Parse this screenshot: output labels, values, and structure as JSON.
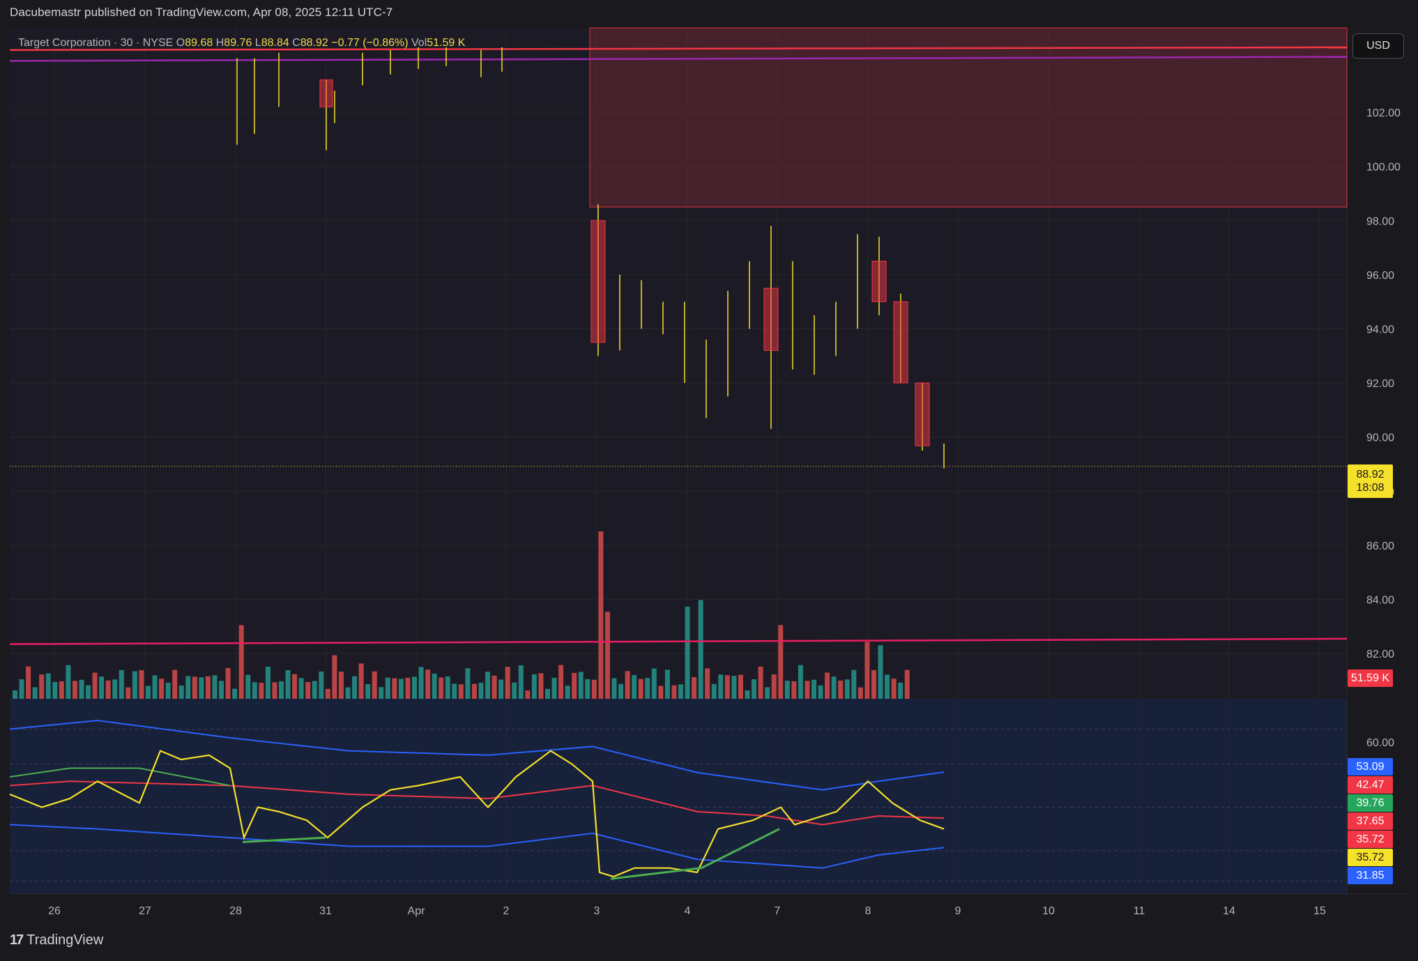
{
  "header": {
    "published": "Dacubemastr published on TradingView.com, Apr 08, 2025 12:11 UTC-7"
  },
  "legend": {
    "symbol": "Target Corporation · 30 · NYSE",
    "open_label": "O",
    "open": "89.68",
    "high_label": "H",
    "high": "89.76",
    "low_label": "L",
    "low": "88.84",
    "close_label": "C",
    "close": "88.92",
    "change": "−0.77 (−0.86%)",
    "vol_label": "Vol",
    "vol": "51.59 K"
  },
  "currency_button": "USD",
  "price_tag": {
    "price": "88.92",
    "countdown": "18:08"
  },
  "volume_tag": "51.59 K",
  "indicator_tags": [
    {
      "value": "53.09",
      "color": "#2962ff"
    },
    {
      "value": "42.47",
      "color": "#f23645"
    },
    {
      "value": "39.76",
      "color": "#26a65b"
    },
    {
      "value": "37.65",
      "color": "#f23645"
    },
    {
      "value": "35.72",
      "color": "#f23645"
    },
    {
      "value": "35.72",
      "color": "#f5e02a"
    },
    {
      "value": "31.85",
      "color": "#2962ff"
    }
  ],
  "footer": {
    "brand": "TradingView",
    "logo_text": "17"
  },
  "colors": {
    "background": "#1a1a1e",
    "candle": "#f5e02a",
    "down_candle": "#f23645",
    "volume_up": "#26a69a",
    "volume_down": "#ef5350",
    "resistance_zone": "#f23645",
    "magenta_line": "#e91e63",
    "purple_line": "#9c27b0",
    "rsi": "#f5e02a",
    "bands": "#2962ff",
    "rsi_ma": "#f23645",
    "divergence": "#4caf50"
  },
  "chart_data": {
    "type": "candlestick",
    "title": "Target Corporation · 30 · NYSE",
    "price_axis": {
      "ylim": [
        81.0,
        104.5
      ],
      "ticks": [
        "102.00",
        "100.00",
        "98.00",
        "96.00",
        "94.00",
        "92.00",
        "90.00",
        "88.00",
        "86.00",
        "84.00",
        "82.00"
      ]
    },
    "x_axis": {
      "ticks": [
        "26",
        "27",
        "28",
        "31",
        "Apr",
        "2",
        "3",
        "4",
        "7",
        "8",
        "9",
        "10",
        "11",
        "14",
        "15"
      ]
    },
    "last_price": 88.92,
    "resistance_zone": {
      "from_date": "3",
      "price_low": 98.5,
      "price_high": 104.5
    },
    "horizontal_lines": [
      {
        "name": "red-line",
        "price_start": 104.3,
        "price_end": 104.4
      },
      {
        "name": "purple-line",
        "price_start": 103.9,
        "price_end": 104.05
      },
      {
        "name": "pink-line",
        "price_start": 82.35,
        "price_end": 82.55
      }
    ],
    "candles": [
      {
        "session": "3",
        "open": 98.0,
        "high": 98.6,
        "low": 93.0,
        "close": 93.5
      },
      {
        "session": "3",
        "open": 94.5,
        "high": 96.0,
        "low": 93.2,
        "close": 95.6
      },
      {
        "session": "3",
        "open": 95.0,
        "high": 95.8,
        "low": 94.0,
        "close": 94.5
      },
      {
        "session": "3",
        "open": 94.5,
        "high": 95.0,
        "low": 93.8,
        "close": 94.2
      },
      {
        "session": "4",
        "open": 93.6,
        "high": 95.0,
        "low": 92.0,
        "close": 93.2
      },
      {
        "session": "4",
        "open": 93.2,
        "high": 93.6,
        "low": 90.7,
        "close": 92.0
      },
      {
        "session": "4",
        "open": 92.0,
        "high": 95.4,
        "low": 91.5,
        "close": 95.0
      },
      {
        "session": "4",
        "open": 95.0,
        "high": 96.5,
        "low": 94.0,
        "close": 96.0
      },
      {
        "session": "7",
        "open": 95.5,
        "high": 97.8,
        "low": 90.3,
        "close": 93.2
      },
      {
        "session": "7",
        "open": 93.5,
        "high": 96.5,
        "low": 92.5,
        "close": 93.5
      },
      {
        "session": "7",
        "open": 93.5,
        "high": 94.5,
        "low": 92.3,
        "close": 93.8
      },
      {
        "session": "7",
        "open": 93.8,
        "high": 95.0,
        "low": 93.0,
        "close": 94.5
      },
      {
        "session": "8",
        "open": 94.5,
        "high": 97.5,
        "low": 94.0,
        "close": 96.8
      },
      {
        "session": "8",
        "open": 96.5,
        "high": 97.4,
        "low": 94.5,
        "close": 95.0
      },
      {
        "session": "8",
        "open": 95.0,
        "high": 95.3,
        "low": 92.0,
        "close": 92.0
      },
      {
        "session": "8",
        "open": 92.0,
        "high": 92.0,
        "low": 89.5,
        "close": 89.68
      },
      {
        "session": "8",
        "open": 89.68,
        "high": 89.76,
        "low": 88.84,
        "close": 88.92
      }
    ],
    "volume": {
      "last": "51.59 K",
      "series": [
        {
          "session": "26",
          "up": true,
          "rel": 0.1
        },
        {
          "session": "27",
          "up": true,
          "rel": 0.14
        },
        {
          "session": "28",
          "up": false,
          "rel": 0.44
        },
        {
          "session": "31",
          "up": false,
          "rel": 0.26
        },
        {
          "session": "Apr",
          "up": true,
          "rel": 0.19
        },
        {
          "session": "2",
          "up": true,
          "rel": 0.2
        },
        {
          "session": "3",
          "up": false,
          "rel": 1.0
        },
        {
          "session": "3",
          "up": false,
          "rel": 0.52
        },
        {
          "session": "4",
          "up": true,
          "rel": 0.55
        },
        {
          "session": "4",
          "up": true,
          "rel": 0.59
        },
        {
          "session": "7",
          "up": false,
          "rel": 0.44
        },
        {
          "session": "8",
          "up": true,
          "rel": 0.32
        },
        {
          "session": "8",
          "up": false,
          "rel": 0.34
        }
      ]
    },
    "rsi_panel": {
      "ticks": [
        "60.00"
      ],
      "values": {
        "upper_band": 53.09,
        "rsi_ma": 42.47,
        "ma2": 39.76,
        "value_a": 37.65,
        "value_b": 35.72,
        "rsi": 35.72,
        "lower_band": 31.85
      }
    }
  }
}
